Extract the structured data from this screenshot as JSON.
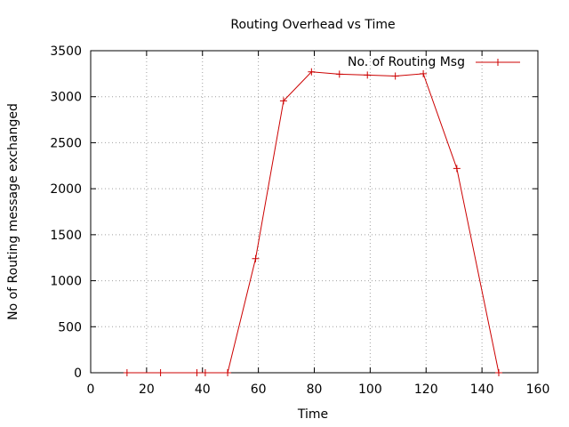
{
  "chart_data": {
    "type": "line",
    "title": "Routing Overhead vs Time",
    "xlabel": "Time",
    "ylabel": "No of Routing message exchanged",
    "xlim": [
      0,
      160
    ],
    "ylim": [
      0,
      3500
    ],
    "xticks": [
      0,
      20,
      40,
      60,
      80,
      100,
      120,
      140,
      160
    ],
    "yticks": [
      0,
      500,
      1000,
      1500,
      2000,
      2500,
      3000,
      3500
    ],
    "grid": true,
    "legend_position": "top-right",
    "series": [
      {
        "name": "No. of Routing Msg",
        "color": "#cc0000",
        "marker": "plus",
        "x": [
          13,
          25,
          38,
          41,
          49,
          59,
          69,
          79,
          89,
          99,
          109,
          119,
          131,
          146
        ],
        "y": [
          0,
          0,
          0,
          0,
          0,
          1240,
          2955,
          3270,
          3245,
          3235,
          3225,
          3250,
          2220,
          0
        ]
      }
    ]
  }
}
